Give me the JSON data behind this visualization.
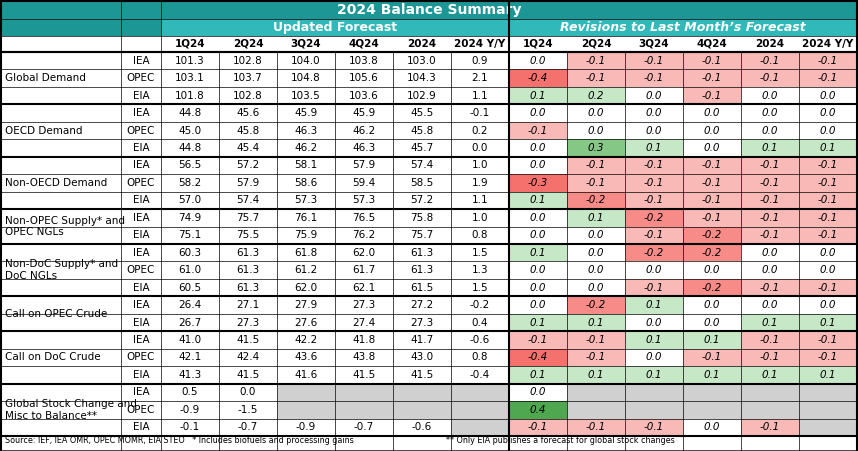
{
  "title": "2024 Balance Summary",
  "header1": "Updated Forecast",
  "header2": "Revisions to Last Month’s Forecast",
  "col_headers": [
    "1Q24",
    "2Q24",
    "3Q24",
    "4Q24",
    "2024",
    "2024 Y/Y",
    "1Q24",
    "2Q24",
    "3Q24",
    "4Q24",
    "2024",
    "2024 Y/Y"
  ],
  "row_groups": [
    {
      "label": "Global Demand",
      "rows": [
        {
          "agency": "IEA",
          "forecast": [
            "101.3",
            "102.8",
            "104.0",
            "103.8",
            "103.0",
            "0.9"
          ],
          "revisions": [
            "0.0",
            "-0.1",
            "-0.1",
            "-0.1",
            "-0.1",
            "-0.1"
          ]
        },
        {
          "agency": "OPEC",
          "forecast": [
            "103.1",
            "103.7",
            "104.8",
            "105.6",
            "104.3",
            "2.1"
          ],
          "revisions": [
            "-0.4",
            "-0.1",
            "-0.1",
            "-0.1",
            "-0.1",
            "-0.1"
          ]
        },
        {
          "agency": "EIA",
          "forecast": [
            "101.8",
            "102.8",
            "103.5",
            "103.6",
            "102.9",
            "1.1"
          ],
          "revisions": [
            "0.1",
            "0.2",
            "0.0",
            "-0.1",
            "0.0",
            "0.0"
          ]
        }
      ]
    },
    {
      "label": "OECD Demand",
      "rows": [
        {
          "agency": "IEA",
          "forecast": [
            "44.8",
            "45.6",
            "45.9",
            "45.9",
            "45.5",
            "-0.1"
          ],
          "revisions": [
            "0.0",
            "0.0",
            "0.0",
            "0.0",
            "0.0",
            "0.0"
          ]
        },
        {
          "agency": "OPEC",
          "forecast": [
            "45.0",
            "45.8",
            "46.3",
            "46.2",
            "45.8",
            "0.2"
          ],
          "revisions": [
            "-0.1",
            "0.0",
            "0.0",
            "0.0",
            "0.0",
            "0.0"
          ]
        },
        {
          "agency": "EIA",
          "forecast": [
            "44.8",
            "45.4",
            "46.2",
            "46.3",
            "45.7",
            "0.0"
          ],
          "revisions": [
            "0.0",
            "0.3",
            "0.1",
            "0.0",
            "0.1",
            "0.1"
          ]
        }
      ]
    },
    {
      "label": "Non-OECD Demand",
      "rows": [
        {
          "agency": "IEA",
          "forecast": [
            "56.5",
            "57.2",
            "58.1",
            "57.9",
            "57.4",
            "1.0"
          ],
          "revisions": [
            "0.0",
            "-0.1",
            "-0.1",
            "-0.1",
            "-0.1",
            "-0.1"
          ]
        },
        {
          "agency": "OPEC",
          "forecast": [
            "58.2",
            "57.9",
            "58.6",
            "59.4",
            "58.5",
            "1.9"
          ],
          "revisions": [
            "-0.3",
            "-0.1",
            "-0.1",
            "-0.1",
            "-0.1",
            "-0.1"
          ]
        },
        {
          "agency": "EIA",
          "forecast": [
            "57.0",
            "57.4",
            "57.3",
            "57.3",
            "57.2",
            "1.1"
          ],
          "revisions": [
            "0.1",
            "-0.2",
            "-0.1",
            "-0.1",
            "-0.1",
            "-0.1"
          ]
        }
      ]
    },
    {
      "label": "Non-OPEC Supply* and\nOPEC NGLs",
      "rows": [
        {
          "agency": "IEA",
          "forecast": [
            "74.9",
            "75.7",
            "76.1",
            "76.5",
            "75.8",
            "1.0"
          ],
          "revisions": [
            "0.0",
            "0.1",
            "-0.2",
            "-0.1",
            "-0.1",
            "-0.1"
          ]
        },
        {
          "agency": "EIA",
          "forecast": [
            "75.1",
            "75.5",
            "75.9",
            "76.2",
            "75.7",
            "0.8"
          ],
          "revisions": [
            "0.0",
            "0.0",
            "-0.1",
            "-0.2",
            "-0.1",
            "-0.1"
          ]
        }
      ]
    },
    {
      "label": "Non-DoC Supply* and\nDoC NGLs",
      "rows": [
        {
          "agency": "IEA",
          "forecast": [
            "60.3",
            "61.3",
            "61.8",
            "62.0",
            "61.3",
            "1.5"
          ],
          "revisions": [
            "0.1",
            "0.0",
            "-0.2",
            "-0.2",
            "0.0",
            "0.0"
          ]
        },
        {
          "agency": "OPEC",
          "forecast": [
            "61.0",
            "61.3",
            "61.2",
            "61.7",
            "61.3",
            "1.3"
          ],
          "revisions": [
            "0.0",
            "0.0",
            "0.0",
            "0.0",
            "0.0",
            "0.0"
          ]
        },
        {
          "agency": "EIA",
          "forecast": [
            "60.5",
            "61.3",
            "62.0",
            "62.1",
            "61.5",
            "1.5"
          ],
          "revisions": [
            "0.0",
            "0.0",
            "-0.1",
            "-0.2",
            "-0.1",
            "-0.1"
          ]
        }
      ]
    },
    {
      "label": "Call on OPEC Crude",
      "rows": [
        {
          "agency": "IEA",
          "forecast": [
            "26.4",
            "27.1",
            "27.9",
            "27.3",
            "27.2",
            "-0.2"
          ],
          "revisions": [
            "0.0",
            "-0.2",
            "0.1",
            "0.0",
            "0.0",
            "0.0"
          ]
        },
        {
          "agency": "EIA",
          "forecast": [
            "26.7",
            "27.3",
            "27.6",
            "27.4",
            "27.3",
            "0.4"
          ],
          "revisions": [
            "0.1",
            "0.1",
            "0.0",
            "0.0",
            "0.1",
            "0.1"
          ]
        }
      ]
    },
    {
      "label": "Call on DoC Crude",
      "rows": [
        {
          "agency": "IEA",
          "forecast": [
            "41.0",
            "41.5",
            "42.2",
            "41.8",
            "41.7",
            "-0.6"
          ],
          "revisions": [
            "-0.1",
            "-0.1",
            "0.1",
            "0.1",
            "-0.1",
            "-0.1"
          ]
        },
        {
          "agency": "OPEC",
          "forecast": [
            "42.1",
            "42.4",
            "43.6",
            "43.8",
            "43.0",
            "0.8"
          ],
          "revisions": [
            "-0.4",
            "-0.1",
            "0.0",
            "-0.1",
            "-0.1",
            "-0.1"
          ]
        },
        {
          "agency": "EIA",
          "forecast": [
            "41.3",
            "41.5",
            "41.6",
            "41.5",
            "41.5",
            "-0.4"
          ],
          "revisions": [
            "0.1",
            "0.1",
            "0.1",
            "0.1",
            "0.1",
            "0.1"
          ]
        }
      ]
    },
    {
      "label": "Global Stock Change and\nMisc to Balance**",
      "rows": [
        {
          "agency": "IEA",
          "forecast": [
            "0.5",
            "0.0",
            "",
            "",
            "",
            ""
          ],
          "revisions": [
            "0.0",
            "",
            "",
            "",
            "",
            ""
          ]
        },
        {
          "agency": "OPEC",
          "forecast": [
            "-0.9",
            "-1.5",
            "",
            "",
            "",
            ""
          ],
          "revisions": [
            "0.4",
            "",
            "",
            "",
            "",
            ""
          ]
        },
        {
          "agency": "EIA",
          "forecast": [
            "-0.1",
            "-0.7",
            "-0.9",
            "-0.7",
            "-0.6",
            ""
          ],
          "revisions": [
            "-0.1",
            "-0.1",
            "-0.1",
            "0.0",
            "-0.1",
            ""
          ]
        }
      ]
    }
  ],
  "footer1": "Source: IEF, IEA OMR, OPEC MOMR, EIA STEO   * Includes biofuels and processing gains",
  "footer2": "** Only EIA publishes a forecast for global stock changes",
  "colors": {
    "title_bg": "#1d9696",
    "header_bg": "#31b8b8",
    "col_header_bg": "#ffffff",
    "border": "#000000",
    "red_strong": "#f4716e",
    "red_light": "#f9b9b7",
    "red_medium": "#f78b88",
    "green_strong": "#4fa84f",
    "green_light": "#c6e8c6",
    "green_medium": "#85c785",
    "white": "#ffffff",
    "gray_bg": "#d0d0d0",
    "text_dark": "#000000"
  }
}
